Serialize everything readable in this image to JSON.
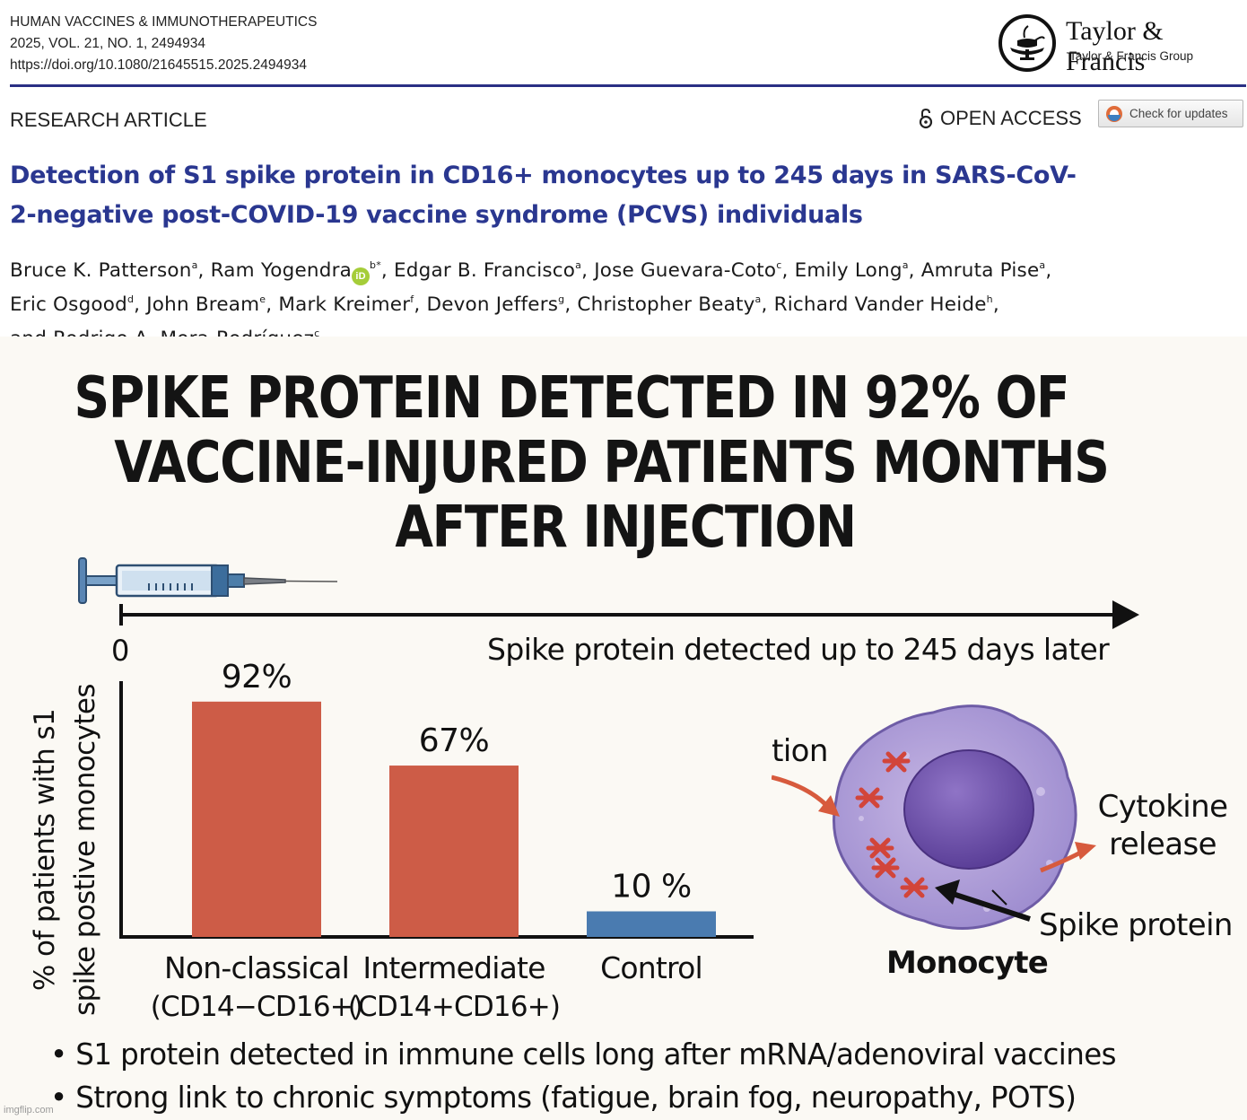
{
  "journal": {
    "name": "HUMAN VACCINES & IMMUNOTHERAPEUTICS",
    "issue": "2025, VOL. 21, NO. 1, 2494934",
    "doi": "https://doi.org/10.1080/21645515.2025.2494934"
  },
  "publisher": {
    "name": "Taylor & Francis",
    "group": "Taylor & Francis Group"
  },
  "article_type": "RESEARCH ARTICLE",
  "open_access": "OPEN ACCESS",
  "check_updates": "Check for updates",
  "title_line1": "Detection of S1 spike protein in CD16+ monocytes up to 245 days in SARS-CoV-",
  "title_line2": "2-negative post-COVID-19 vaccine syndrome (PCVS) individuals",
  "authors": [
    {
      "name": "Bruce K. Patterson",
      "aff": "a"
    },
    {
      "name": "Ram Yogendra",
      "aff": "b*",
      "orcid": true
    },
    {
      "name": "Edgar B. Francisco",
      "aff": "a"
    },
    {
      "name": "Jose Guevara-Coto",
      "aff": "c"
    },
    {
      "name": "Emily Long",
      "aff": "a"
    },
    {
      "name": "Amruta Pise",
      "aff": "a"
    },
    {
      "name": "Eric Osgood",
      "aff": "d"
    },
    {
      "name": "John Bream",
      "aff": "e"
    },
    {
      "name": "Mark Kreimer",
      "aff": "f"
    },
    {
      "name": "Devon Jeffers",
      "aff": "g"
    },
    {
      "name": "Christopher Beaty",
      "aff": "a"
    },
    {
      "name": "Richard Vander Heide",
      "aff": "h"
    },
    {
      "name": "Rodrigo A. Mora-Rodríguez",
      "aff": "c"
    }
  ],
  "authors_and": "and",
  "orcid_text": "iD",
  "headline": {
    "line1": "SPIKE PROTEIN DETECTED IN 92% OF",
    "line2": "VACCINE-INJURED PATIENTS MONTHS",
    "line3": "AFTER INJECTION"
  },
  "timeline": {
    "start": "0",
    "label": "Spike protein detected up to 245 days later"
  },
  "chart_data": {
    "type": "bar",
    "ylabel_line1": "% of patients with s1",
    "ylabel_line2": "spike postive monocytes",
    "categories": [
      {
        "line1": "Non-classical",
        "line2": "(CD14−CD16+)"
      },
      {
        "line1": "Intermediate",
        "line2": "(CD14+CD16+)"
      },
      {
        "line1": "Control",
        "line2": ""
      }
    ],
    "values": [
      92,
      67,
      10
    ],
    "value_labels": [
      "92%",
      "67%",
      "10 %"
    ],
    "colors": [
      "#cd5c47",
      "#cd5c47",
      "#4a7bb0"
    ],
    "ylim": [
      0,
      100
    ]
  },
  "cell_labels": {
    "inflammation": "Inflammation",
    "cytokine_line1": "Cytokine",
    "cytokine_line2": "release",
    "spike": "Spike protein",
    "monocyte": "Monocyte"
  },
  "bullets": [
    "• S1 protein detected in immune cells long after mRNA/adenoviral vaccines",
    "• Strong link to chronic symptoms (fatigue, brain fog, neuropathy, POTS)"
  ],
  "watermark": "imgflip.com"
}
